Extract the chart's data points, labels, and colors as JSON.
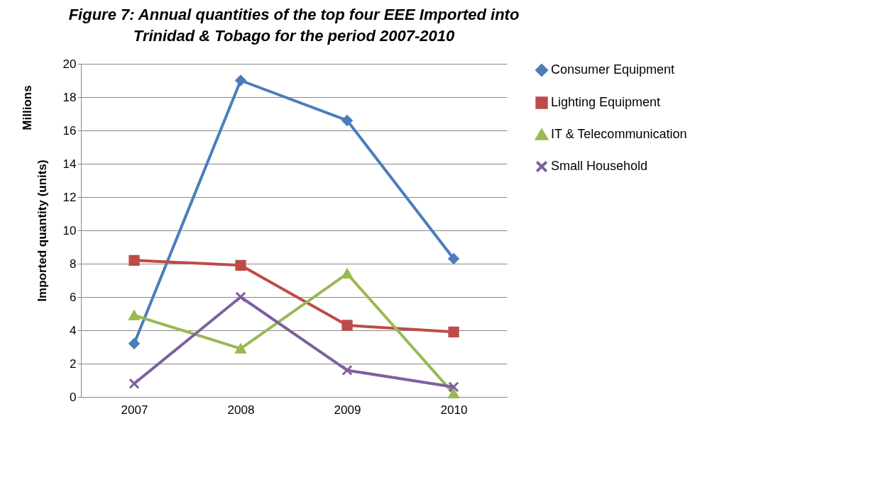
{
  "chart_data": {
    "type": "line",
    "title": "Figure 7: Annual quantities of the top four EEE Imported into Trinidad & Tobago for the period 2007-2010",
    "ylabel": "Imported quantity (units)",
    "annotations": [
      "Millions"
    ],
    "categories": [
      "2007",
      "2008",
      "2009",
      "2010"
    ],
    "ylim": [
      0,
      20
    ],
    "yticks": [
      0,
      2,
      4,
      6,
      8,
      10,
      12,
      14,
      16,
      18,
      20
    ],
    "grid": "y",
    "legend": "right",
    "series": [
      {
        "name": "Consumer Equipment",
        "color": "#4a7ebb",
        "marker": "diamond",
        "values": [
          3.2,
          19.0,
          16.6,
          8.3
        ]
      },
      {
        "name": "Lighting Equipment",
        "color": "#be4b48",
        "marker": "square",
        "values": [
          8.2,
          7.9,
          4.3,
          3.9
        ]
      },
      {
        "name": "IT & Telecommunication",
        "color": "#98b954",
        "marker": "triangle",
        "values": [
          4.9,
          2.9,
          7.4,
          0.2
        ]
      },
      {
        "name": "Small Household",
        "color": "#7d60a0",
        "marker": "cross",
        "values": [
          0.8,
          6.0,
          1.6,
          0.6
        ]
      }
    ]
  }
}
